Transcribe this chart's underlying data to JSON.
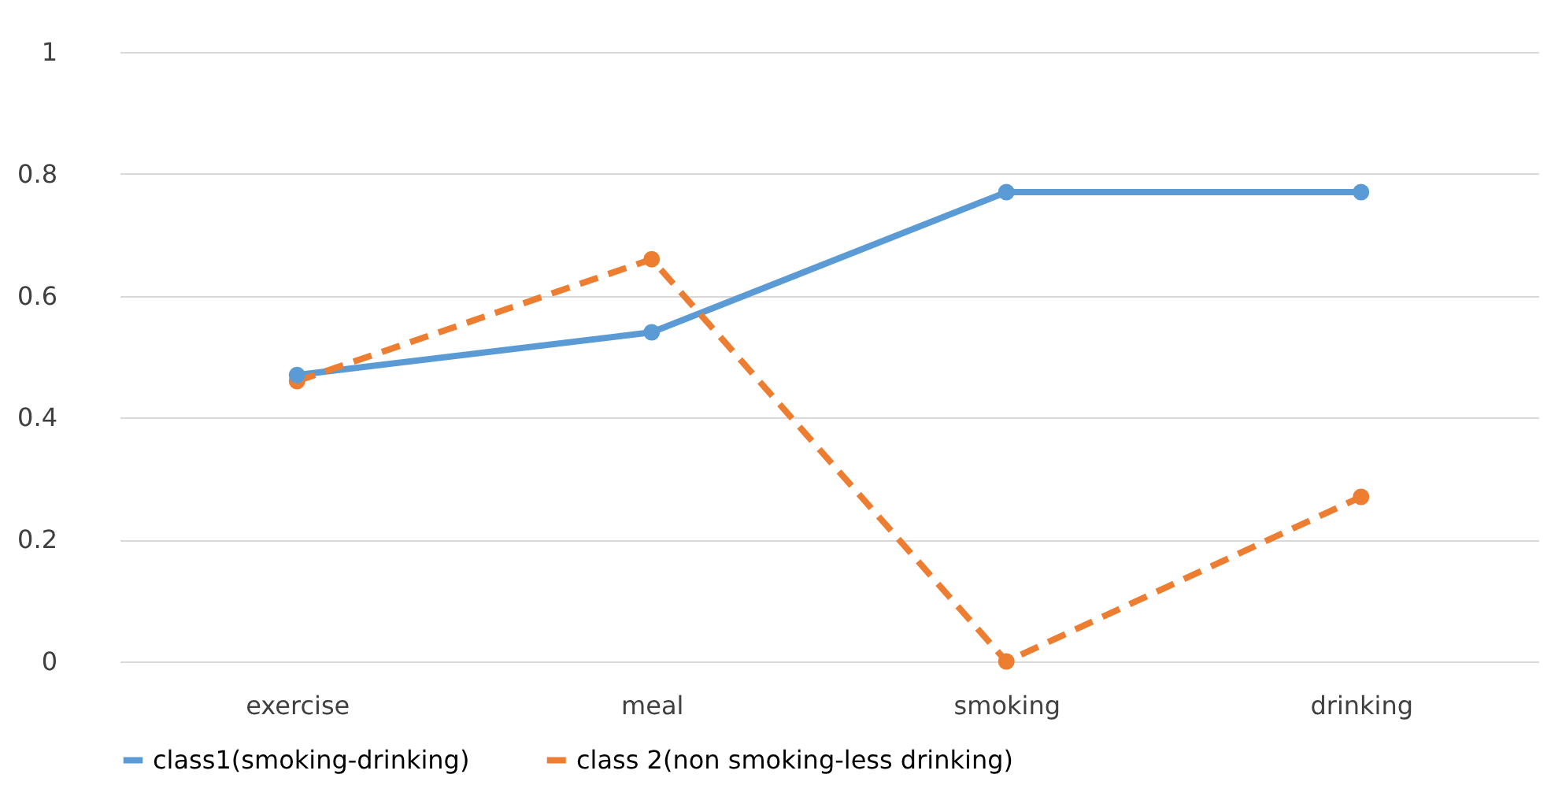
{
  "chart_data": {
    "type": "line",
    "categories": [
      "exercise",
      "meal",
      "smoking",
      "drinking"
    ],
    "series": [
      {
        "name": "class1(smoking-drinking)",
        "color": "#5b9bd5",
        "line_style": "solid",
        "values": [
          0.47,
          0.54,
          0.77,
          0.77
        ]
      },
      {
        "name": "class 2(non smoking-less drinking)",
        "color": "#ed7d31",
        "line_style": "dashed",
        "values": [
          0.46,
          0.66,
          0,
          0.27
        ]
      }
    ],
    "ylim": [
      0,
      1
    ],
    "yticks": [
      0,
      0.2,
      0.4,
      0.6,
      0.8,
      1
    ],
    "grid": "y",
    "legend": "bottom",
    "marker": "circle"
  }
}
